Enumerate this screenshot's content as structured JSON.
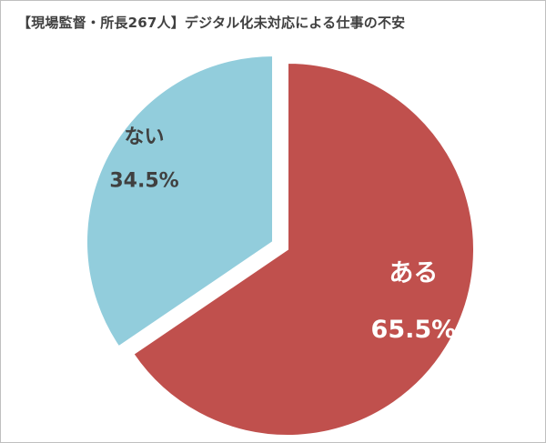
{
  "chart_data": {
    "type": "pie",
    "title": "【現場監督・所長267人】デジタル化未対応による仕事の不安",
    "slices": [
      {
        "label": "ある",
        "value": 65.5,
        "value_label": "65.5%",
        "color": "#c0504d",
        "label_color": "#ffffff"
      },
      {
        "label": "ない",
        "value": 34.5,
        "value_label": "34.5%",
        "color": "#92cddc",
        "label_color": "#404040"
      }
    ],
    "start_angle": "12 o'clock",
    "direction": "clockwise",
    "exploded": true,
    "legend": "none"
  }
}
